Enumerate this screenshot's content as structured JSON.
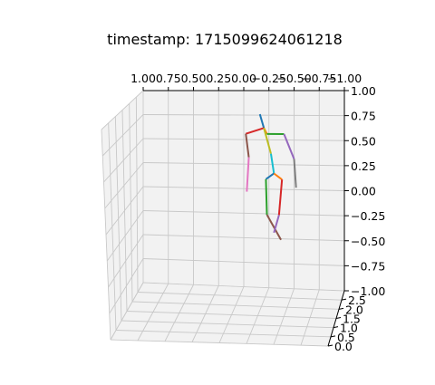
{
  "chart_data": {
    "type": "line",
    "projection": "3d",
    "title": "timestamp: 1715099624061218",
    "xlabel": "",
    "ylabel": "",
    "zlabel": "",
    "grid": true,
    "x_axis": {
      "ticks": [
        1.0,
        0.75,
        0.5,
        0.25,
        0.0,
        -0.25,
        -0.5,
        -0.75,
        -1.0
      ],
      "tick_labels": [
        "1.00",
        "0.75",
        "0.50",
        "0.25",
        "0.00",
        "−0.25",
        "−0.50",
        "−0.75",
        "−1.00"
      ]
    },
    "y_axis": {
      "ticks": [
        0.0,
        0.5,
        1.0,
        1.5,
        2.0,
        2.5
      ],
      "tick_labels": [
        "0.0",
        "0.5",
        "1.0",
        "1.5",
        "2.0",
        "2.5"
      ]
    },
    "z_axis": {
      "ticks": [
        1.0,
        0.75,
        0.5,
        0.25,
        0.0,
        -0.25,
        -0.5,
        -0.75,
        -1.0
      ],
      "tick_labels": [
        "1.00",
        "0.75",
        "0.50",
        "0.25",
        "0.00",
        "−0.25",
        "−0.50",
        "−0.75",
        "−1.00"
      ]
    },
    "segments": [
      {
        "color": "#1f77b4",
        "points": [
          [
            -0.16,
            1.6,
            0.76
          ],
          [
            -0.2,
            1.6,
            0.62
          ]
        ]
      },
      {
        "color": "#ff7f0e",
        "points": [
          [
            -0.2,
            1.6,
            0.62
          ],
          [
            -0.23,
            1.6,
            0.56
          ]
        ]
      },
      {
        "color": "#d62728",
        "points": [
          [
            -0.2,
            1.6,
            0.62
          ],
          [
            -0.02,
            1.6,
            0.56
          ]
        ]
      },
      {
        "color": "#8c564b",
        "points": [
          [
            -0.02,
            1.6,
            0.56
          ],
          [
            -0.05,
            1.6,
            0.32
          ]
        ]
      },
      {
        "color": "#e377c2",
        "points": [
          [
            -0.05,
            1.6,
            0.32
          ],
          [
            -0.03,
            1.6,
            -0.03
          ]
        ]
      },
      {
        "color": "#2ca02c",
        "points": [
          [
            -0.23,
            1.6,
            0.56
          ],
          [
            -0.4,
            1.6,
            0.56
          ]
        ]
      },
      {
        "color": "#9467bd",
        "points": [
          [
            -0.4,
            1.6,
            0.56
          ],
          [
            -0.5,
            1.6,
            0.31
          ]
        ]
      },
      {
        "color": "#7f7f7f",
        "points": [
          [
            -0.5,
            1.6,
            0.31
          ],
          [
            -0.52,
            1.6,
            0.02
          ]
        ]
      },
      {
        "color": "#bcbd22",
        "points": [
          [
            -0.2,
            1.6,
            0.62
          ],
          [
            -0.27,
            1.6,
            0.36
          ]
        ]
      },
      {
        "color": "#17becf",
        "points": [
          [
            -0.27,
            1.6,
            0.36
          ],
          [
            -0.3,
            1.6,
            0.16
          ]
        ]
      },
      {
        "color": "#1f77b4",
        "points": [
          [
            -0.3,
            1.6,
            0.16
          ],
          [
            -0.22,
            1.6,
            0.1
          ]
        ]
      },
      {
        "color": "#2ca02c",
        "points": [
          [
            -0.22,
            1.6,
            0.1
          ],
          [
            -0.23,
            1.6,
            -0.26
          ]
        ]
      },
      {
        "color": "#8c564b",
        "points": [
          [
            -0.23,
            1.6,
            -0.26
          ],
          [
            -0.37,
            1.6,
            -0.51
          ]
        ]
      },
      {
        "color": "#ff7f0e",
        "points": [
          [
            -0.3,
            1.6,
            0.16
          ],
          [
            -0.38,
            1.6,
            0.1
          ]
        ]
      },
      {
        "color": "#d62728",
        "points": [
          [
            -0.38,
            1.6,
            0.1
          ],
          [
            -0.35,
            1.6,
            -0.26
          ]
        ]
      },
      {
        "color": "#9467bd",
        "points": [
          [
            -0.35,
            1.6,
            -0.26
          ],
          [
            -0.3,
            1.6,
            -0.44
          ]
        ]
      }
    ]
  }
}
